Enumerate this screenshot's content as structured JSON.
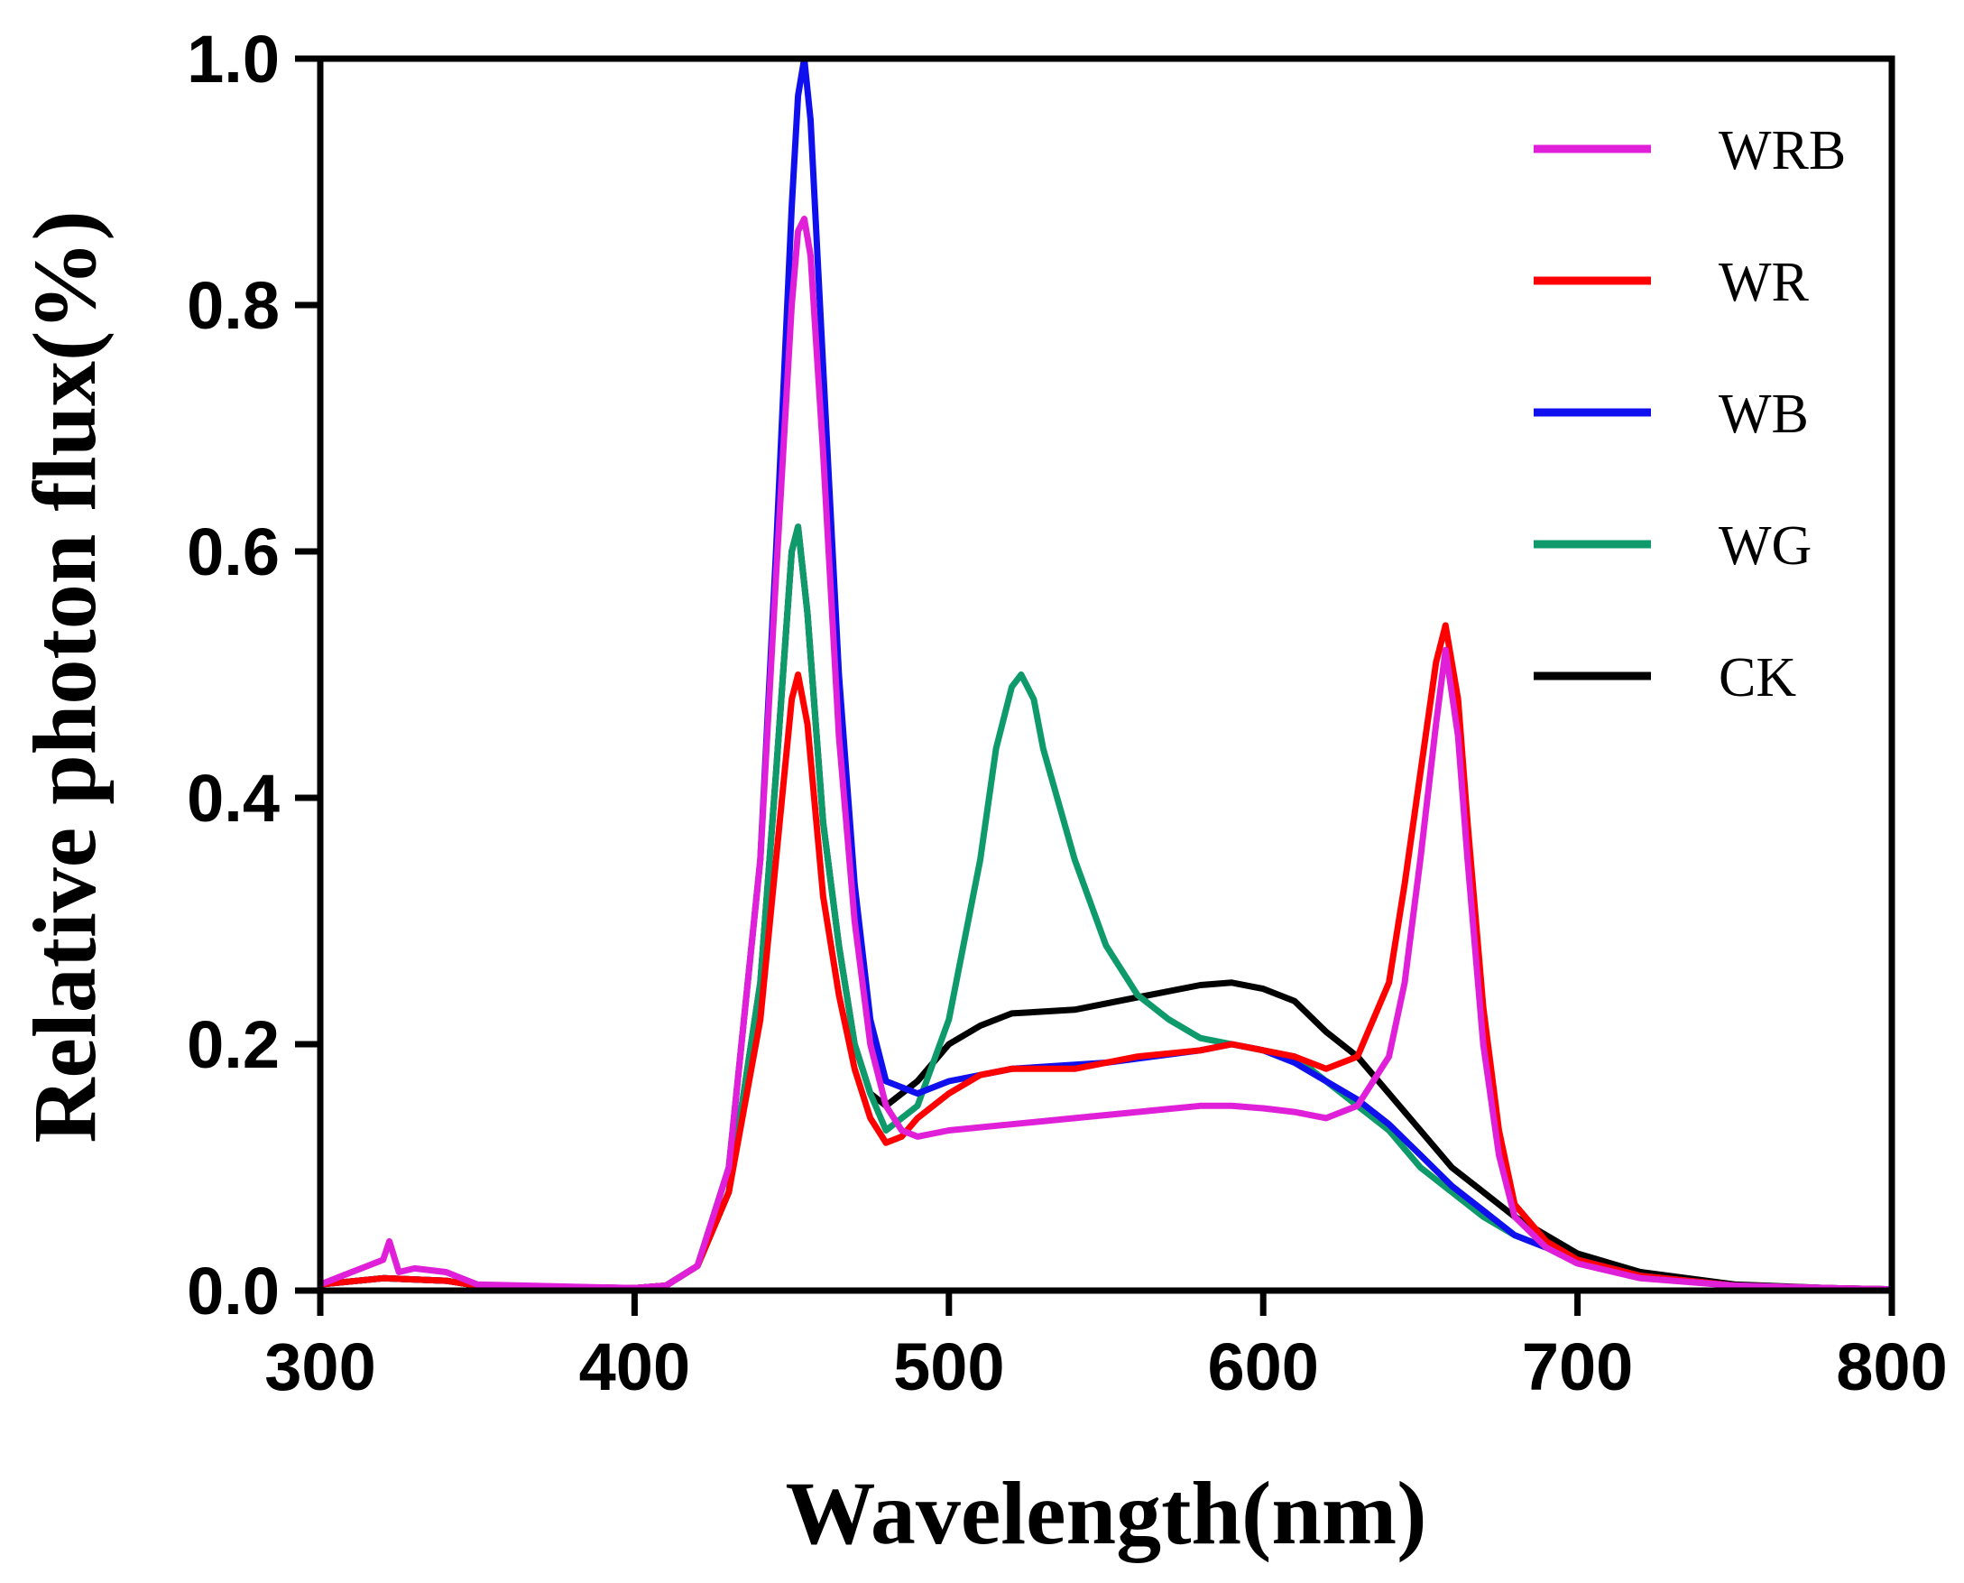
{
  "chart_data": {
    "type": "line",
    "title": "",
    "xlabel": "Wavelength(nm)",
    "ylabel": "Relative photon flux(%)",
    "xlim": [
      300,
      800
    ],
    "ylim": [
      0,
      1.0
    ],
    "xticks": [
      300,
      400,
      500,
      600,
      700,
      800
    ],
    "xtick_labels": [
      "300",
      "400",
      "500",
      "600",
      "700",
      "800"
    ],
    "yticks": [
      0.0,
      0.2,
      0.4,
      0.6,
      0.8,
      1.0
    ],
    "ytick_labels": [
      "0.0",
      "0.2",
      "0.4",
      "0.6",
      "0.8",
      "1.0"
    ],
    "grid": false,
    "legend_position": "top-right",
    "series": [
      {
        "name": "CK",
        "color": "#000000",
        "x": [
          300,
          320,
          340,
          350,
          400,
          410,
          420,
          430,
          440,
          445,
          450,
          452,
          455,
          460,
          465,
          470,
          475,
          480,
          490,
          500,
          510,
          520,
          540,
          560,
          580,
          590,
          600,
          610,
          620,
          630,
          640,
          650,
          660,
          670,
          680,
          700,
          720,
          750,
          780,
          800
        ],
        "y": [
          0.005,
          0.01,
          0.008,
          0.004,
          0.002,
          0.004,
          0.02,
          0.08,
          0.25,
          0.42,
          0.6,
          0.62,
          0.55,
          0.38,
          0.28,
          0.2,
          0.16,
          0.15,
          0.17,
          0.2,
          0.215,
          0.225,
          0.228,
          0.238,
          0.248,
          0.25,
          0.245,
          0.235,
          0.21,
          0.19,
          0.16,
          0.13,
          0.1,
          0.08,
          0.06,
          0.03,
          0.015,
          0.005,
          0.002,
          0.001
        ]
      },
      {
        "name": "WG",
        "color": "#0e9a6a",
        "x": [
          300,
          320,
          340,
          350,
          400,
          410,
          420,
          430,
          440,
          445,
          450,
          452,
          455,
          460,
          465,
          470,
          475,
          480,
          490,
          500,
          510,
          515,
          520,
          523,
          527,
          530,
          540,
          550,
          560,
          570,
          580,
          590,
          600,
          610,
          620,
          630,
          640,
          650,
          660,
          670,
          680,
          700,
          720,
          750,
          780,
          800
        ],
        "y": [
          0.005,
          0.01,
          0.008,
          0.004,
          0.002,
          0.004,
          0.02,
          0.08,
          0.25,
          0.42,
          0.6,
          0.62,
          0.55,
          0.38,
          0.28,
          0.2,
          0.16,
          0.13,
          0.15,
          0.22,
          0.35,
          0.44,
          0.49,
          0.5,
          0.48,
          0.44,
          0.35,
          0.28,
          0.24,
          0.22,
          0.205,
          0.2,
          0.195,
          0.19,
          0.17,
          0.15,
          0.13,
          0.1,
          0.08,
          0.06,
          0.045,
          0.025,
          0.012,
          0.004,
          0.002,
          0.001
        ]
      },
      {
        "name": "WB",
        "color": "#1010ee",
        "x": [
          300,
          320,
          340,
          350,
          400,
          410,
          420,
          430,
          440,
          445,
          450,
          452,
          454,
          456,
          460,
          465,
          470,
          475,
          480,
          485,
          490,
          500,
          520,
          550,
          580,
          590,
          600,
          610,
          620,
          630,
          640,
          650,
          660,
          670,
          680,
          700,
          720,
          750,
          780,
          800
        ],
        "y": [
          0.005,
          0.01,
          0.008,
          0.004,
          0.002,
          0.004,
          0.02,
          0.1,
          0.35,
          0.6,
          0.88,
          0.97,
          1.0,
          0.95,
          0.75,
          0.5,
          0.33,
          0.22,
          0.17,
          0.165,
          0.16,
          0.17,
          0.18,
          0.185,
          0.195,
          0.2,
          0.195,
          0.185,
          0.17,
          0.155,
          0.135,
          0.11,
          0.085,
          0.065,
          0.045,
          0.025,
          0.012,
          0.004,
          0.002,
          0.001
        ]
      },
      {
        "name": "WR",
        "color": "#ff0000",
        "x": [
          300,
          320,
          340,
          350,
          400,
          410,
          420,
          430,
          440,
          445,
          450,
          452,
          455,
          460,
          465,
          470,
          475,
          480,
          485,
          490,
          500,
          510,
          520,
          540,
          560,
          580,
          590,
          600,
          610,
          620,
          630,
          640,
          645,
          650,
          655,
          658,
          662,
          665,
          670,
          675,
          680,
          690,
          700,
          720,
          750,
          780,
          800
        ],
        "y": [
          0.005,
          0.01,
          0.008,
          0.004,
          0.002,
          0.004,
          0.02,
          0.08,
          0.22,
          0.35,
          0.48,
          0.5,
          0.46,
          0.32,
          0.24,
          0.18,
          0.14,
          0.12,
          0.125,
          0.14,
          0.16,
          0.175,
          0.18,
          0.18,
          0.19,
          0.195,
          0.2,
          0.195,
          0.19,
          0.18,
          0.19,
          0.25,
          0.33,
          0.42,
          0.51,
          0.54,
          0.48,
          0.38,
          0.23,
          0.13,
          0.07,
          0.04,
          0.025,
          0.012,
          0.004,
          0.002,
          0.001
        ]
      },
      {
        "name": "WRB",
        "color": "#e020d8",
        "x": [
          300,
          310,
          315,
          320,
          322,
          325,
          330,
          340,
          350,
          400,
          410,
          420,
          430,
          440,
          445,
          450,
          452,
          454,
          456,
          460,
          465,
          470,
          475,
          480,
          485,
          490,
          500,
          520,
          540,
          560,
          580,
          590,
          600,
          610,
          620,
          630,
          640,
          645,
          650,
          655,
          658,
          662,
          665,
          670,
          675,
          680,
          690,
          700,
          720,
          750,
          780,
          800
        ],
        "y": [
          0.005,
          0.015,
          0.02,
          0.025,
          0.04,
          0.015,
          0.018,
          0.015,
          0.005,
          0.002,
          0.004,
          0.02,
          0.1,
          0.35,
          0.58,
          0.8,
          0.86,
          0.87,
          0.84,
          0.68,
          0.45,
          0.3,
          0.2,
          0.15,
          0.13,
          0.125,
          0.13,
          0.135,
          0.14,
          0.145,
          0.15,
          0.15,
          0.148,
          0.145,
          0.14,
          0.15,
          0.19,
          0.25,
          0.35,
          0.46,
          0.52,
          0.45,
          0.35,
          0.2,
          0.11,
          0.06,
          0.035,
          0.022,
          0.01,
          0.004,
          0.002,
          0.001
        ]
      }
    ],
    "legend_order": [
      "WRB",
      "WR",
      "WB",
      "WG",
      "CK"
    ]
  }
}
